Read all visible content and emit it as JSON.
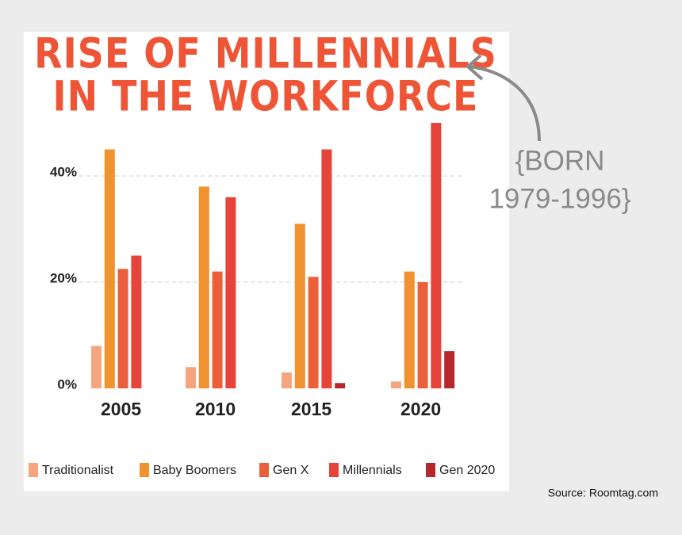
{
  "chart_data": {
    "type": "bar",
    "title": [
      "RISE OF MILLENNIALS",
      "IN THE WORKFORCE"
    ],
    "annotation": [
      "{BORN",
      "1979-1996}"
    ],
    "source": "Source: Roomtag.com",
    "categories": [
      "2005",
      "2010",
      "2015",
      "2020"
    ],
    "series": [
      {
        "name": "Traditionalist",
        "color": "#f5a67e",
        "values": [
          8,
          4,
          3,
          1.3
        ]
      },
      {
        "name": "Baby Boomers",
        "color": "#f0922f",
        "values": [
          45,
          38,
          31,
          22
        ]
      },
      {
        "name": "Gen X",
        "color": "#e9603a",
        "values": [
          22.5,
          22,
          21,
          20
        ]
      },
      {
        "name": "Millennials",
        "color": "#e6433a",
        "values": [
          25,
          36,
          45,
          50
        ]
      },
      {
        "name": "Gen 2020",
        "color": "#b6282e",
        "values": [
          null,
          null,
          1,
          7
        ]
      }
    ],
    "ylim": [
      0,
      50
    ],
    "yticks": [
      {
        "value": 0,
        "label": "0%"
      },
      {
        "value": 20,
        "label": "20%"
      },
      {
        "value": 40,
        "label": "40%"
      }
    ],
    "grid": true
  }
}
